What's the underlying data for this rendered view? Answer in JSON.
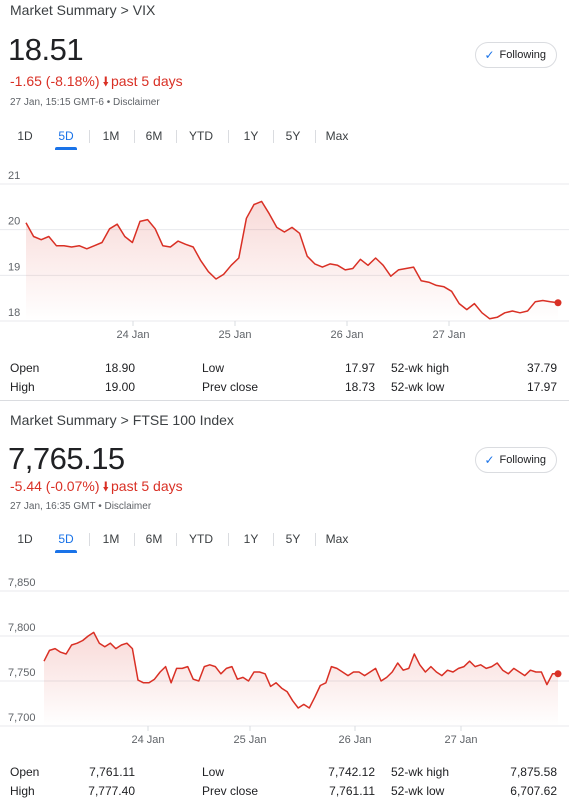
{
  "colors": {
    "accent": "#1a73e8",
    "negative": "#d93025",
    "line": "#d93025"
  },
  "panels": [
    {
      "breadcrumb": {
        "parent": "Market Summary",
        "separator": ">",
        "current": "VIX"
      },
      "price": "18.51",
      "change": {
        "text": "-1.65 (-8.18%)",
        "arrow": "down-arrow-icon",
        "period": "past 5 days"
      },
      "meta": "27 Jan, 15:15 GMT-6 • Disclaimer",
      "follow_label": "Following",
      "tabs": [
        "1D",
        "5D",
        "1M",
        "6M",
        "YTD",
        "1Y",
        "5Y",
        "Max"
      ],
      "selected_tab": "5D",
      "stats": [
        [
          "Open",
          "18.90",
          "Low",
          "17.97",
          "52-wk high",
          "37.79"
        ],
        [
          "High",
          "19.00",
          "Prev close",
          "18.73",
          "52-wk low",
          "17.97"
        ]
      ]
    },
    {
      "breadcrumb": {
        "parent": "Market Summary",
        "separator": ">",
        "current": "FTSE 100 Index"
      },
      "price": "7,765.15",
      "change": {
        "text": "-5.44 (-0.07%)",
        "arrow": "down-arrow-icon",
        "period": "past 5 days"
      },
      "meta": "27 Jan, 16:35 GMT • Disclaimer",
      "follow_label": "Following",
      "tabs": [
        "1D",
        "5D",
        "1M",
        "6M",
        "YTD",
        "1Y",
        "5Y",
        "Max"
      ],
      "selected_tab": "5D",
      "stats": [
        [
          "Open",
          "7,761.11",
          "Low",
          "7,742.12",
          "52-wk high",
          "7,875.58"
        ],
        [
          "High",
          "7,777.40",
          "Prev close",
          "7,761.11",
          "52-wk low",
          "6,707.62"
        ]
      ]
    }
  ],
  "chart_data": [
    {
      "type": "area",
      "x_tick_labels": [
        "24 Jan",
        "25 Jan",
        "26 Jan",
        "27 Jan"
      ],
      "y_tick_labels": [
        "21",
        "20",
        "19",
        "18"
      ],
      "ylim": [
        18,
        21
      ],
      "grid": true,
      "series": [
        {
          "values": [
            20.15,
            19.85,
            19.78,
            19.85,
            19.65,
            19.65,
            19.62,
            19.65,
            19.58,
            19.65,
            19.72,
            20.02,
            20.12,
            19.85,
            19.72,
            20.18,
            20.22,
            20.02,
            19.65,
            19.62,
            19.75,
            19.68,
            19.62,
            19.32,
            19.08,
            18.92,
            19.02,
            19.22,
            19.38,
            20.25,
            20.55,
            20.62,
            20.35,
            20.05,
            19.95,
            20.05,
            19.92,
            19.42,
            19.25,
            19.18,
            19.25,
            19.22,
            19.12,
            19.15,
            19.35,
            19.22,
            19.38,
            19.22,
            18.98,
            19.12,
            19.15,
            19.18,
            18.88,
            18.85,
            18.78,
            18.75,
            18.65,
            18.38,
            18.25,
            18.38,
            18.18,
            18.05,
            18.08,
            18.18,
            18.22,
            18.18,
            18.22,
            18.42,
            18.45,
            18.42,
            18.4
          ]
        }
      ]
    },
    {
      "type": "area",
      "x_tick_labels": [
        "24 Jan",
        "25 Jan",
        "26 Jan",
        "27 Jan"
      ],
      "y_tick_labels": [
        "7,850",
        "7,800",
        "7,750",
        "7,700"
      ],
      "ylim": [
        7700,
        7850
      ],
      "grid": true,
      "series": [
        {
          "values": [
            7772,
            7784,
            7786,
            7782,
            7780,
            7790,
            7792,
            7795,
            7800,
            7804,
            7792,
            7788,
            7792,
            7786,
            7790,
            7792,
            7786,
            7751,
            7748,
            7748,
            7752,
            7760,
            7766,
            7748,
            7764,
            7764,
            7766,
            7752,
            7750,
            7766,
            7768,
            7766,
            7758,
            7764,
            7766,
            7752,
            7754,
            7750,
            7760,
            7760,
            7758,
            7744,
            7748,
            7742,
            7738,
            7728,
            7720,
            7724,
            7720,
            7732,
            7745,
            7748,
            7766,
            7764,
            7760,
            7756,
            7760,
            7760,
            7756,
            7760,
            7764,
            7750,
            7754,
            7760,
            7770,
            7762,
            7764,
            7780,
            7768,
            7760,
            7766,
            7760,
            7756,
            7762,
            7760,
            7764,
            7766,
            7772,
            7766,
            7768,
            7764,
            7766,
            7770,
            7762,
            7758,
            7764,
            7760,
            7756,
            7762,
            7760,
            7760,
            7746,
            7758,
            7758
          ]
        }
      ]
    }
  ]
}
